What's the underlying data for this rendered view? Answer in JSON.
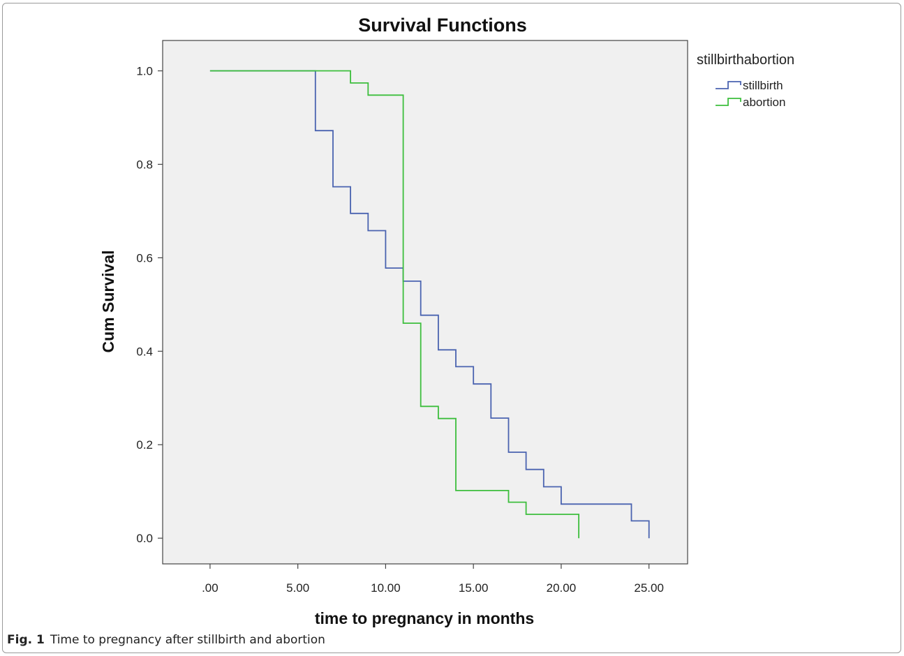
{
  "chart_data": {
    "type": "line",
    "step": true,
    "title": "Survival Functions",
    "xlabel": "time to pregnancy in months",
    "ylabel": "Cum Survival",
    "xlim": [
      -2.7,
      27.2
    ],
    "ylim": [
      -0.055,
      1.065
    ],
    "xticks": [
      0,
      5,
      10,
      15,
      20,
      25
    ],
    "xtick_labels": [
      ".00",
      "5.00",
      "10.00",
      "15.00",
      "20.00",
      "25.00"
    ],
    "yticks": [
      0,
      0.2,
      0.4,
      0.6,
      0.8,
      1.0
    ],
    "ytick_labels": [
      "0.0",
      "0.2",
      "0.4",
      "0.6",
      "0.8",
      "1.0"
    ],
    "grid": false,
    "legend": {
      "title": "stillbirthabortion",
      "position": "right"
    },
    "series": [
      {
        "name": "stillbirth",
        "color": "#4a63b0",
        "points": [
          [
            0,
            1.0
          ],
          [
            6,
            1.0
          ],
          [
            6,
            0.872
          ],
          [
            7,
            0.872
          ],
          [
            7,
            0.752
          ],
          [
            8,
            0.752
          ],
          [
            8,
            0.695
          ],
          [
            9,
            0.695
          ],
          [
            9,
            0.658
          ],
          [
            10,
            0.658
          ],
          [
            10,
            0.578
          ],
          [
            11,
            0.578
          ],
          [
            11,
            0.55
          ],
          [
            12,
            0.55
          ],
          [
            12,
            0.477
          ],
          [
            13,
            0.477
          ],
          [
            13,
            0.403
          ],
          [
            14,
            0.403
          ],
          [
            14,
            0.367
          ],
          [
            15,
            0.367
          ],
          [
            15,
            0.33
          ],
          [
            16,
            0.33
          ],
          [
            16,
            0.257
          ],
          [
            17,
            0.257
          ],
          [
            17,
            0.184
          ],
          [
            18,
            0.184
          ],
          [
            18,
            0.147
          ],
          [
            19,
            0.147
          ],
          [
            19,
            0.11
          ],
          [
            20,
            0.11
          ],
          [
            20,
            0.073
          ],
          [
            24,
            0.073
          ],
          [
            24,
            0.037
          ],
          [
            25,
            0.037
          ],
          [
            25,
            0.0
          ]
        ]
      },
      {
        "name": "abortion",
        "color": "#3dbe3d",
        "points": [
          [
            0,
            1.0
          ],
          [
            8,
            1.0
          ],
          [
            8,
            0.974
          ],
          [
            9,
            0.974
          ],
          [
            9,
            0.948
          ],
          [
            11,
            0.948
          ],
          [
            11,
            0.46
          ],
          [
            12,
            0.46
          ],
          [
            12,
            0.282
          ],
          [
            13,
            0.282
          ],
          [
            13,
            0.256
          ],
          [
            14,
            0.256
          ],
          [
            14,
            0.102
          ],
          [
            17,
            0.102
          ],
          [
            17,
            0.077
          ],
          [
            18,
            0.077
          ],
          [
            18,
            0.051
          ],
          [
            21,
            0.051
          ],
          [
            21,
            0.0
          ]
        ]
      }
    ]
  },
  "caption": {
    "label": "Fig. 1",
    "text": "Time to pregnancy after stillbirth and abortion"
  }
}
